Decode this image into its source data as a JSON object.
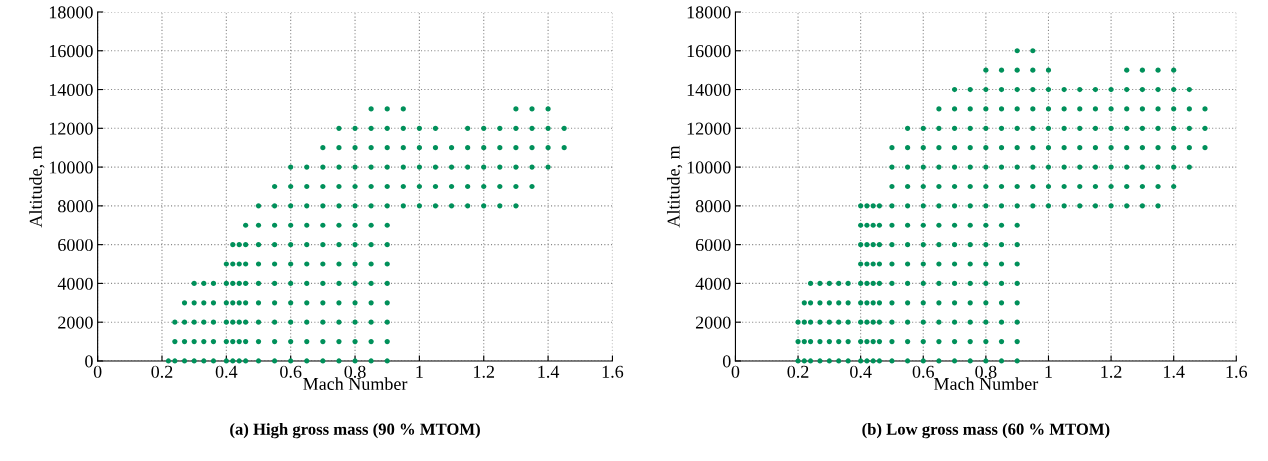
{
  "chart_data": [
    {
      "type": "scatter",
      "title": "(a) High gross mass (90 % MTOM)",
      "xlabel": "Mach Number",
      "ylabel": "Altitude, m",
      "xlim": [
        0,
        1.6
      ],
      "xticks": [
        0,
        0.2,
        0.4,
        0.6,
        0.8,
        1,
        1.2,
        1.4,
        1.6
      ],
      "ylim": [
        0,
        18000
      ],
      "yticks": [
        0,
        2000,
        4000,
        6000,
        8000,
        10000,
        12000,
        14000,
        16000,
        18000
      ],
      "grid": true,
      "marker": "circle",
      "series": [
        {
          "color": "#00905a",
          "x": [
            0.22,
            0.24,
            0.27,
            0.3,
            0.33,
            0.36,
            0.4,
            0.42,
            0.44,
            0.46,
            0.5,
            0.55,
            0.6,
            0.65,
            0.7,
            0.75,
            0.8,
            0.85,
            0.9
          ],
          "values": [
            0,
            0,
            0,
            0,
            0,
            0,
            0,
            0,
            0,
            0,
            0,
            0,
            0,
            0,
            0,
            0,
            0,
            0,
            0
          ]
        },
        {
          "color": "#00905a",
          "x": [
            0.24,
            0.27,
            0.3,
            0.33,
            0.36,
            0.4,
            0.42,
            0.44,
            0.46,
            0.5,
            0.55,
            0.6,
            0.65,
            0.7,
            0.75,
            0.8,
            0.85,
            0.9
          ],
          "values": [
            1000,
            1000,
            1000,
            1000,
            1000,
            1000,
            1000,
            1000,
            1000,
            1000,
            1000,
            1000,
            1000,
            1000,
            1000,
            1000,
            1000,
            1000
          ]
        },
        {
          "color": "#00905a",
          "x": [
            0.24,
            0.27,
            0.3,
            0.33,
            0.36,
            0.4,
            0.42,
            0.44,
            0.46,
            0.5,
            0.55,
            0.6,
            0.65,
            0.7,
            0.75,
            0.8,
            0.85,
            0.9
          ],
          "values": [
            2000,
            2000,
            2000,
            2000,
            2000,
            2000,
            2000,
            2000,
            2000,
            2000,
            2000,
            2000,
            2000,
            2000,
            2000,
            2000,
            2000,
            2000
          ]
        },
        {
          "color": "#00905a",
          "x": [
            0.27,
            0.3,
            0.33,
            0.36,
            0.4,
            0.42,
            0.44,
            0.46,
            0.5,
            0.55,
            0.6,
            0.65,
            0.7,
            0.75,
            0.8,
            0.85,
            0.9
          ],
          "values": [
            3000,
            3000,
            3000,
            3000,
            3000,
            3000,
            3000,
            3000,
            3000,
            3000,
            3000,
            3000,
            3000,
            3000,
            3000,
            3000,
            3000
          ]
        },
        {
          "color": "#00905a",
          "x": [
            0.3,
            0.33,
            0.36,
            0.4,
            0.42,
            0.44,
            0.46,
            0.5,
            0.55,
            0.6,
            0.65,
            0.7,
            0.75,
            0.8,
            0.85,
            0.9
          ],
          "values": [
            4000,
            4000,
            4000,
            4000,
            4000,
            4000,
            4000,
            4000,
            4000,
            4000,
            4000,
            4000,
            4000,
            4000,
            4000,
            4000
          ]
        },
        {
          "color": "#00905a",
          "x": [
            0.4,
            0.42,
            0.44,
            0.46,
            0.5,
            0.55,
            0.6,
            0.65,
            0.7,
            0.75,
            0.8,
            0.85,
            0.9
          ],
          "values": [
            5000,
            5000,
            5000,
            5000,
            5000,
            5000,
            5000,
            5000,
            5000,
            5000,
            5000,
            5000,
            5000
          ]
        },
        {
          "color": "#00905a",
          "x": [
            0.42,
            0.44,
            0.46,
            0.5,
            0.55,
            0.6,
            0.65,
            0.7,
            0.75,
            0.8,
            0.85,
            0.9
          ],
          "values": [
            6000,
            6000,
            6000,
            6000,
            6000,
            6000,
            6000,
            6000,
            6000,
            6000,
            6000,
            6000
          ]
        },
        {
          "color": "#00905a",
          "x": [
            0.46,
            0.5,
            0.55,
            0.6,
            0.65,
            0.7,
            0.75,
            0.8,
            0.85,
            0.9
          ],
          "values": [
            7000,
            7000,
            7000,
            7000,
            7000,
            7000,
            7000,
            7000,
            7000,
            7000
          ]
        },
        {
          "color": "#00905a",
          "x": [
            0.5,
            0.55,
            0.6,
            0.65,
            0.7,
            0.75,
            0.8,
            0.85,
            0.9,
            0.95,
            1.0,
            1.05,
            1.1,
            1.15,
            1.2,
            1.25,
            1.3
          ],
          "values": [
            8000,
            8000,
            8000,
            8000,
            8000,
            8000,
            8000,
            8000,
            8000,
            8000,
            8000,
            8000,
            8000,
            8000,
            8000,
            8000,
            8000
          ]
        },
        {
          "color": "#00905a",
          "x": [
            0.55,
            0.6,
            0.65,
            0.7,
            0.75,
            0.8,
            0.85,
            0.9,
            0.95,
            1.0,
            1.05,
            1.1,
            1.15,
            1.2,
            1.25,
            1.3,
            1.35
          ],
          "values": [
            9000,
            9000,
            9000,
            9000,
            9000,
            9000,
            9000,
            9000,
            9000,
            9000,
            9000,
            9000,
            9000,
            9000,
            9000,
            9000,
            9000
          ]
        },
        {
          "color": "#00905a",
          "x": [
            0.6,
            0.65,
            0.7,
            0.75,
            0.8,
            0.85,
            0.9,
            0.95,
            1.0,
            1.05,
            1.1,
            1.15,
            1.2,
            1.25,
            1.3,
            1.35,
            1.4
          ],
          "values": [
            10000,
            10000,
            10000,
            10000,
            10000,
            10000,
            10000,
            10000,
            10000,
            10000,
            10000,
            10000,
            10000,
            10000,
            10000,
            10000,
            10000
          ]
        },
        {
          "color": "#00905a",
          "x": [
            0.7,
            0.75,
            0.8,
            0.85,
            0.9,
            0.95,
            1.0,
            1.05,
            1.1,
            1.15,
            1.2,
            1.25,
            1.3,
            1.35,
            1.4,
            1.45
          ],
          "values": [
            11000,
            11000,
            11000,
            11000,
            11000,
            11000,
            11000,
            11000,
            11000,
            11000,
            11000,
            11000,
            11000,
            11000,
            11000,
            11000
          ]
        },
        {
          "color": "#00905a",
          "x": [
            0.75,
            0.8,
            0.85,
            0.9,
            0.95,
            1.0,
            1.05,
            1.15,
            1.2,
            1.25,
            1.3,
            1.35,
            1.4,
            1.45
          ],
          "values": [
            12000,
            12000,
            12000,
            12000,
            12000,
            12000,
            12000,
            12000,
            12000,
            12000,
            12000,
            12000,
            12000,
            12000
          ]
        },
        {
          "color": "#00905a",
          "x": [
            0.85,
            0.9,
            0.95,
            1.3,
            1.35,
            1.4
          ],
          "values": [
            13000,
            13000,
            13000,
            13000,
            13000,
            13000
          ]
        }
      ]
    },
    {
      "type": "scatter",
      "title": "(b) Low gross mass (60 % MTOM)",
      "xlabel": "Mach Number",
      "ylabel": "Altitude, m",
      "xlim": [
        0,
        1.6
      ],
      "xticks": [
        0,
        0.2,
        0.4,
        0.6,
        0.8,
        1,
        1.2,
        1.4,
        1.6
      ],
      "ylim": [
        0,
        18000
      ],
      "yticks": [
        0,
        2000,
        4000,
        6000,
        8000,
        10000,
        12000,
        14000,
        16000,
        18000
      ],
      "grid": true,
      "marker": "circle",
      "series": [
        {
          "color": "#00905a",
          "x": [
            0.2,
            0.22,
            0.24,
            0.27,
            0.3,
            0.33,
            0.36,
            0.4,
            0.42,
            0.44,
            0.46,
            0.5,
            0.55,
            0.6,
            0.65,
            0.7,
            0.75,
            0.8,
            0.85,
            0.9
          ],
          "values": [
            0,
            0,
            0,
            0,
            0,
            0,
            0,
            0,
            0,
            0,
            0,
            0,
            0,
            0,
            0,
            0,
            0,
            0,
            0,
            0
          ]
        },
        {
          "color": "#00905a",
          "x": [
            0.2,
            0.22,
            0.24,
            0.27,
            0.3,
            0.33,
            0.36,
            0.4,
            0.42,
            0.44,
            0.46,
            0.5,
            0.55,
            0.6,
            0.65,
            0.7,
            0.75,
            0.8,
            0.85,
            0.9
          ],
          "values": [
            1000,
            1000,
            1000,
            1000,
            1000,
            1000,
            1000,
            1000,
            1000,
            1000,
            1000,
            1000,
            1000,
            1000,
            1000,
            1000,
            1000,
            1000,
            1000,
            1000
          ]
        },
        {
          "color": "#00905a",
          "x": [
            0.2,
            0.22,
            0.24,
            0.27,
            0.3,
            0.33,
            0.36,
            0.4,
            0.42,
            0.44,
            0.46,
            0.5,
            0.55,
            0.6,
            0.65,
            0.7,
            0.75,
            0.8,
            0.85,
            0.9
          ],
          "values": [
            2000,
            2000,
            2000,
            2000,
            2000,
            2000,
            2000,
            2000,
            2000,
            2000,
            2000,
            2000,
            2000,
            2000,
            2000,
            2000,
            2000,
            2000,
            2000,
            2000
          ]
        },
        {
          "color": "#00905a",
          "x": [
            0.22,
            0.24,
            0.27,
            0.3,
            0.33,
            0.36,
            0.4,
            0.42,
            0.44,
            0.46,
            0.5,
            0.55,
            0.6,
            0.65,
            0.7,
            0.75,
            0.8,
            0.85,
            0.9
          ],
          "values": [
            3000,
            3000,
            3000,
            3000,
            3000,
            3000,
            3000,
            3000,
            3000,
            3000,
            3000,
            3000,
            3000,
            3000,
            3000,
            3000,
            3000,
            3000,
            3000
          ]
        },
        {
          "color": "#00905a",
          "x": [
            0.24,
            0.27,
            0.3,
            0.33,
            0.36,
            0.4,
            0.42,
            0.44,
            0.46,
            0.5,
            0.55,
            0.6,
            0.65,
            0.7,
            0.75,
            0.8,
            0.85,
            0.9
          ],
          "values": [
            4000,
            4000,
            4000,
            4000,
            4000,
            4000,
            4000,
            4000,
            4000,
            4000,
            4000,
            4000,
            4000,
            4000,
            4000,
            4000,
            4000,
            4000
          ]
        },
        {
          "color": "#00905a",
          "x": [
            0.4,
            0.42,
            0.44,
            0.46,
            0.5,
            0.55,
            0.6,
            0.65,
            0.7,
            0.75,
            0.8,
            0.85,
            0.9
          ],
          "values": [
            5000,
            5000,
            5000,
            5000,
            5000,
            5000,
            5000,
            5000,
            5000,
            5000,
            5000,
            5000,
            5000
          ]
        },
        {
          "color": "#00905a",
          "x": [
            0.4,
            0.42,
            0.44,
            0.46,
            0.5,
            0.55,
            0.6,
            0.65,
            0.7,
            0.75,
            0.8,
            0.85,
            0.9
          ],
          "values": [
            6000,
            6000,
            6000,
            6000,
            6000,
            6000,
            6000,
            6000,
            6000,
            6000,
            6000,
            6000,
            6000
          ]
        },
        {
          "color": "#00905a",
          "x": [
            0.4,
            0.42,
            0.44,
            0.46,
            0.5,
            0.55,
            0.6,
            0.65,
            0.7,
            0.75,
            0.8,
            0.85,
            0.9
          ],
          "values": [
            7000,
            7000,
            7000,
            7000,
            7000,
            7000,
            7000,
            7000,
            7000,
            7000,
            7000,
            7000,
            7000
          ]
        },
        {
          "color": "#00905a",
          "x": [
            0.4,
            0.42,
            0.44,
            0.46,
            0.5,
            0.55,
            0.6,
            0.65,
            0.7,
            0.75,
            0.8,
            0.85,
            0.9,
            0.95,
            1.0,
            1.05,
            1.1,
            1.15,
            1.2,
            1.25,
            1.3,
            1.35
          ],
          "values": [
            8000,
            8000,
            8000,
            8000,
            8000,
            8000,
            8000,
            8000,
            8000,
            8000,
            8000,
            8000,
            8000,
            8000,
            8000,
            8000,
            8000,
            8000,
            8000,
            8000,
            8000,
            8000
          ]
        },
        {
          "color": "#00905a",
          "x": [
            0.5,
            0.55,
            0.6,
            0.65,
            0.7,
            0.75,
            0.8,
            0.85,
            0.9,
            0.95,
            1.0,
            1.05,
            1.1,
            1.15,
            1.2,
            1.25,
            1.3,
            1.35,
            1.4
          ],
          "values": [
            9000,
            9000,
            9000,
            9000,
            9000,
            9000,
            9000,
            9000,
            9000,
            9000,
            9000,
            9000,
            9000,
            9000,
            9000,
            9000,
            9000,
            9000,
            9000
          ]
        },
        {
          "color": "#00905a",
          "x": [
            0.5,
            0.55,
            0.6,
            0.65,
            0.7,
            0.75,
            0.8,
            0.85,
            0.9,
            0.95,
            1.0,
            1.05,
            1.1,
            1.15,
            1.2,
            1.25,
            1.3,
            1.35,
            1.4,
            1.45
          ],
          "values": [
            10000,
            10000,
            10000,
            10000,
            10000,
            10000,
            10000,
            10000,
            10000,
            10000,
            10000,
            10000,
            10000,
            10000,
            10000,
            10000,
            10000,
            10000,
            10000,
            10000
          ]
        },
        {
          "color": "#00905a",
          "x": [
            0.5,
            0.55,
            0.6,
            0.65,
            0.7,
            0.75,
            0.8,
            0.85,
            0.9,
            0.95,
            1.0,
            1.05,
            1.1,
            1.15,
            1.2,
            1.25,
            1.3,
            1.35,
            1.4,
            1.45,
            1.5
          ],
          "values": [
            11000,
            11000,
            11000,
            11000,
            11000,
            11000,
            11000,
            11000,
            11000,
            11000,
            11000,
            11000,
            11000,
            11000,
            11000,
            11000,
            11000,
            11000,
            11000,
            11000,
            11000
          ]
        },
        {
          "color": "#00905a",
          "x": [
            0.55,
            0.6,
            0.65,
            0.7,
            0.75,
            0.8,
            0.85,
            0.9,
            0.95,
            1.0,
            1.05,
            1.1,
            1.15,
            1.2,
            1.25,
            1.3,
            1.35,
            1.4,
            1.45,
            1.5
          ],
          "values": [
            12000,
            12000,
            12000,
            12000,
            12000,
            12000,
            12000,
            12000,
            12000,
            12000,
            12000,
            12000,
            12000,
            12000,
            12000,
            12000,
            12000,
            12000,
            12000,
            12000
          ]
        },
        {
          "color": "#00905a",
          "x": [
            0.65,
            0.7,
            0.75,
            0.8,
            0.85,
            0.9,
            0.95,
            1.0,
            1.05,
            1.1,
            1.15,
            1.2,
            1.25,
            1.3,
            1.35,
            1.4,
            1.45,
            1.5
          ],
          "values": [
            13000,
            13000,
            13000,
            13000,
            13000,
            13000,
            13000,
            13000,
            13000,
            13000,
            13000,
            13000,
            13000,
            13000,
            13000,
            13000,
            13000,
            13000
          ]
        },
        {
          "color": "#00905a",
          "x": [
            0.7,
            0.75,
            0.8,
            0.85,
            0.9,
            0.95,
            1.0,
            1.05,
            1.1,
            1.15,
            1.2,
            1.25,
            1.3,
            1.35,
            1.4,
            1.45
          ],
          "values": [
            14000,
            14000,
            14000,
            14000,
            14000,
            14000,
            14000,
            14000,
            14000,
            14000,
            14000,
            14000,
            14000,
            14000,
            14000,
            14000
          ]
        },
        {
          "color": "#00905a",
          "x": [
            0.8,
            0.85,
            0.9,
            0.95,
            1.0,
            1.25,
            1.3,
            1.35,
            1.4
          ],
          "values": [
            15000,
            15000,
            15000,
            15000,
            15000,
            15000,
            15000,
            15000,
            15000
          ]
        },
        {
          "color": "#00905a",
          "x": [
            0.9,
            0.95
          ],
          "values": [
            16000,
            16000
          ]
        }
      ]
    }
  ]
}
